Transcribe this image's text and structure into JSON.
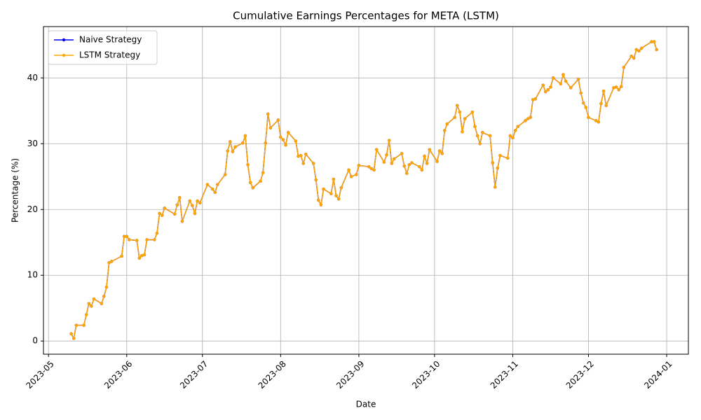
{
  "chart_data": {
    "type": "line",
    "title": "Cumulative Earnings Percentages for META (LSTM)",
    "xlabel": "Date",
    "ylabel": "Percentage (%)",
    "x": [
      9,
      10,
      11,
      14,
      15,
      16,
      17,
      18,
      21,
      22,
      23,
      24,
      25,
      29,
      30,
      31,
      32,
      35,
      36,
      37,
      38,
      39,
      42,
      43,
      44,
      45,
      46,
      50,
      51,
      52,
      53,
      56,
      57,
      58,
      59,
      60,
      63,
      65,
      66,
      67,
      70,
      71,
      72,
      73,
      74,
      77,
      78,
      79,
      80,
      81,
      84,
      85,
      86,
      87,
      88,
      91,
      92,
      93,
      94,
      95,
      98,
      99,
      100,
      101,
      102,
      105,
      106,
      107,
      108,
      109,
      112,
      113,
      114,
      115,
      116,
      119,
      120,
      122,
      123,
      127,
      128,
      129,
      130,
      133,
      134,
      135,
      136,
      137,
      140,
      141,
      142,
      143,
      144,
      147,
      148,
      149,
      150,
      151,
      154,
      155,
      156,
      157,
      158,
      161,
      162,
      163,
      164,
      165,
      168,
      169,
      170,
      171,
      172,
      175,
      176,
      177,
      178,
      179,
      182,
      183,
      184,
      185,
      186,
      189,
      190,
      191,
      192,
      193,
      196,
      197,
      198,
      199,
      200,
      203,
      204,
      205,
      207,
      210,
      211,
      212,
      213,
      214,
      217,
      218,
      219,
      220,
      221,
      224,
      225,
      226,
      227,
      228,
      231,
      232,
      233,
      234,
      235,
      239,
      240,
      241
    ],
    "series": [
      {
        "name": "Naive Strategy",
        "color": "#0000ff",
        "values": [
          1.1,
          0.4,
          2.4,
          2.4,
          4.0,
          5.7,
          5.3,
          6.4,
          5.7,
          6.8,
          8.2,
          11.9,
          12.1,
          12.9,
          15.9,
          15.9,
          15.4,
          15.3,
          12.6,
          13.0,
          13.1,
          15.4,
          15.4,
          16.4,
          19.4,
          19.1,
          20.2,
          19.3,
          20.7,
          21.8,
          18.2,
          21.3,
          20.6,
          19.4,
          21.3,
          21.0,
          23.8,
          23.1,
          22.6,
          23.8,
          25.3,
          28.9,
          30.3,
          28.8,
          29.5,
          30.1,
          31.2,
          26.8,
          24.1,
          23.3,
          24.3,
          25.6,
          30.1,
          34.5,
          32.4,
          33.6,
          31.0,
          30.6,
          29.8,
          31.7,
          30.4,
          28.1,
          28.2,
          27.0,
          28.4,
          27.0,
          24.5,
          21.4,
          20.7,
          23.1,
          22.4,
          24.6,
          22.1,
          21.6,
          23.3,
          26.0,
          25.0,
          25.3,
          26.7,
          26.5,
          26.2,
          26.0,
          29.1,
          27.2,
          28.3,
          30.5,
          27.0,
          27.7,
          28.5,
          26.6,
          25.5,
          26.8,
          27.1,
          26.5,
          26.0,
          28.1,
          27.0,
          29.1,
          27.3,
          28.9,
          28.5,
          32.0,
          33.0,
          34.0,
          35.8,
          34.8,
          31.8,
          33.8,
          34.8,
          32.6,
          31.2,
          30.0,
          31.7,
          31.2,
          27.1,
          23.4,
          26.3,
          28.2,
          27.8,
          31.2,
          30.9,
          32.0,
          32.6,
          33.5,
          33.8,
          34.0,
          36.7,
          36.8,
          38.9,
          37.9,
          38.2,
          38.6,
          40.0,
          39.1,
          40.5,
          39.5,
          38.5,
          39.8,
          37.7,
          36.2,
          35.5,
          34.0,
          33.5,
          33.3,
          36.1,
          38.0,
          35.8,
          38.5,
          38.6,
          38.2,
          38.7,
          41.6,
          43.3,
          43.0,
          44.3,
          44.1,
          44.5,
          45.5,
          45.5,
          44.3
        ]
      },
      {
        "name": "LSTM Strategy",
        "color": "#ffa500",
        "values": [
          1.1,
          0.4,
          2.4,
          2.4,
          4.0,
          5.7,
          5.3,
          6.4,
          5.7,
          6.8,
          8.2,
          11.9,
          12.1,
          12.9,
          15.9,
          15.9,
          15.4,
          15.3,
          12.6,
          13.0,
          13.1,
          15.4,
          15.4,
          16.4,
          19.4,
          19.1,
          20.2,
          19.3,
          20.7,
          21.8,
          18.2,
          21.3,
          20.6,
          19.4,
          21.3,
          21.0,
          23.8,
          23.1,
          22.6,
          23.8,
          25.3,
          28.9,
          30.3,
          28.8,
          29.5,
          30.1,
          31.2,
          26.8,
          24.1,
          23.3,
          24.3,
          25.6,
          30.1,
          34.5,
          32.4,
          33.6,
          31.0,
          30.6,
          29.8,
          31.7,
          30.4,
          28.1,
          28.2,
          27.0,
          28.4,
          27.0,
          24.5,
          21.4,
          20.7,
          23.1,
          22.4,
          24.6,
          22.1,
          21.6,
          23.3,
          26.0,
          25.0,
          25.3,
          26.7,
          26.5,
          26.2,
          26.0,
          29.1,
          27.2,
          28.3,
          30.5,
          27.0,
          27.7,
          28.5,
          26.6,
          25.5,
          26.8,
          27.1,
          26.5,
          26.0,
          28.1,
          27.0,
          29.1,
          27.3,
          28.9,
          28.5,
          32.0,
          33.0,
          34.0,
          35.8,
          34.8,
          31.8,
          33.8,
          34.8,
          32.6,
          31.2,
          30.0,
          31.7,
          31.2,
          27.1,
          23.4,
          26.3,
          28.2,
          27.8,
          31.2,
          30.9,
          32.0,
          32.6,
          33.5,
          33.8,
          34.0,
          36.7,
          36.8,
          38.9,
          37.9,
          38.2,
          38.6,
          40.0,
          39.1,
          40.5,
          39.5,
          38.5,
          39.8,
          37.7,
          36.2,
          35.5,
          34.0,
          33.5,
          33.3,
          36.1,
          38.0,
          35.8,
          38.5,
          38.6,
          38.2,
          38.7,
          41.6,
          43.3,
          43.0,
          44.3,
          44.1,
          44.5,
          45.5,
          45.5,
          44.3
        ]
      }
    ],
    "xlim": [
      -2,
      253.6
    ],
    "xticks": [
      {
        "value": 0,
        "label": "2023-05"
      },
      {
        "value": 31,
        "label": "2023-06"
      },
      {
        "value": 61,
        "label": "2023-07"
      },
      {
        "value": 92,
        "label": "2023-08"
      },
      {
        "value": 123,
        "label": "2023-09"
      },
      {
        "value": 153,
        "label": "2023-10"
      },
      {
        "value": 184,
        "label": "2023-11"
      },
      {
        "value": 214,
        "label": "2023-12"
      },
      {
        "value": 245,
        "label": "2024-01"
      }
    ],
    "ylim": [
      -2,
      47.8
    ],
    "yticks": [
      0,
      10,
      20,
      30,
      40
    ],
    "grid": true,
    "legend": "upper left"
  }
}
